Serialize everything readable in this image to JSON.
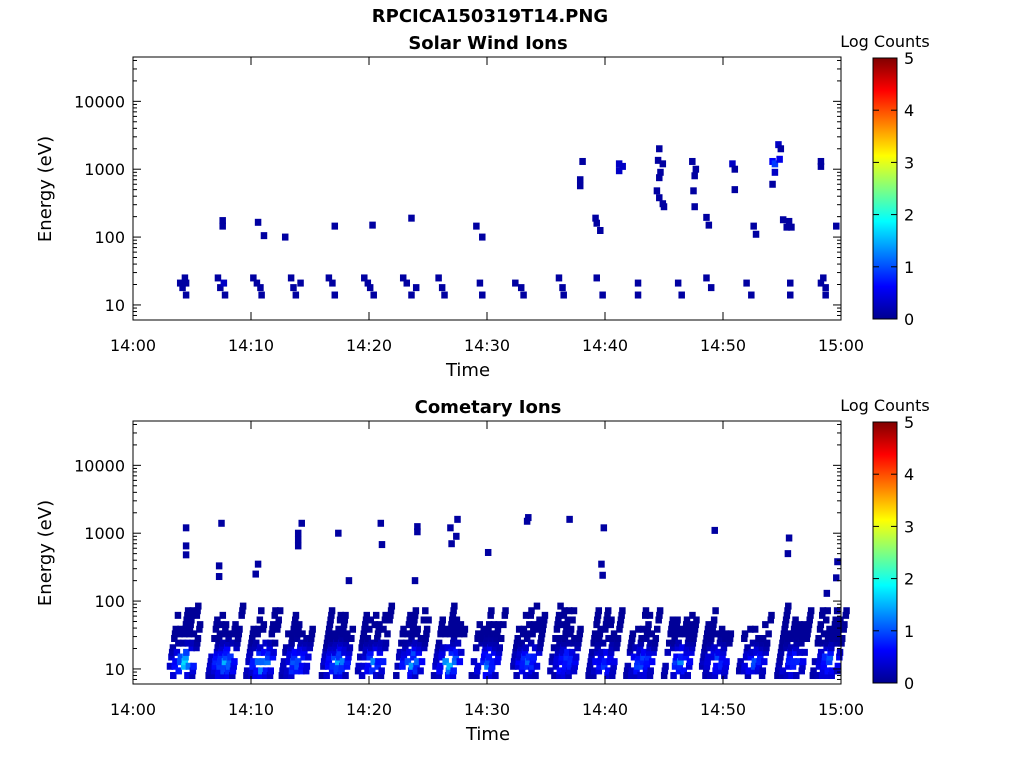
{
  "figure": {
    "title": "RPCICA150319T14.PNG"
  },
  "chart_data": [
    {
      "type": "heatmap",
      "title": "Solar Wind Ions",
      "xlabel": "Time",
      "ylabel": "Energy (eV)",
      "x_ticks": [
        "14:00",
        "14:10",
        "14:20",
        "14:30",
        "14:40",
        "14:50",
        "15:00"
      ],
      "x_range_minutes": [
        0,
        60
      ],
      "y_scale": "log",
      "y_ticks": [
        10,
        100,
        1000,
        10000
      ],
      "y_tick_labels": [
        "10",
        "100",
        "1000",
        "10000"
      ],
      "ylim": [
        6,
        45000
      ],
      "colorbar": {
        "label": "Log Counts",
        "range": [
          0,
          5
        ],
        "ticks": [
          "0",
          "1",
          "2",
          "3",
          "4",
          "5"
        ],
        "colormap": "jet"
      },
      "cells": [
        [
          4.0,
          21,
          0.1
        ],
        [
          4.2,
          18,
          0.1
        ],
        [
          4.4,
          25,
          0.1
        ],
        [
          4.5,
          14,
          0.1
        ],
        [
          4.5,
          21,
          0.1
        ],
        [
          7.2,
          25,
          0.1
        ],
        [
          7.4,
          18,
          0.1
        ],
        [
          7.8,
          14,
          0.1
        ],
        [
          7.7,
          21,
          0.3
        ],
        [
          7.6,
          175,
          0.1
        ],
        [
          7.6,
          145,
          0.1
        ],
        [
          10.2,
          25,
          0.1
        ],
        [
          10.5,
          21,
          0.1
        ],
        [
          10.8,
          18,
          0.1
        ],
        [
          10.9,
          14,
          0.1
        ],
        [
          10.6,
          165,
          0.1
        ],
        [
          11.1,
          105,
          0.1
        ],
        [
          13.4,
          25,
          0.1
        ],
        [
          13.6,
          18,
          0.1
        ],
        [
          13.8,
          14,
          0.1
        ],
        [
          14.2,
          21,
          0.1
        ],
        [
          12.9,
          100,
          0.1
        ],
        [
          16.6,
          25,
          0.1
        ],
        [
          16.9,
          21,
          0.1
        ],
        [
          17.1,
          14,
          0.1
        ],
        [
          17.1,
          145,
          0.1
        ],
        [
          19.6,
          25,
          0.1
        ],
        [
          19.9,
          21,
          0.1
        ],
        [
          20.1,
          18,
          0.1
        ],
        [
          20.4,
          14,
          0.1
        ],
        [
          20.3,
          150,
          0.1
        ],
        [
          22.9,
          25,
          0.1
        ],
        [
          23.2,
          21,
          0.1
        ],
        [
          23.6,
          14,
          0.1
        ],
        [
          24.0,
          18,
          0.1
        ],
        [
          23.6,
          190,
          0.1
        ],
        [
          25.9,
          25,
          0.1
        ],
        [
          26.2,
          18,
          0.1
        ],
        [
          26.4,
          14,
          0.1
        ],
        [
          29.1,
          145,
          0.1
        ],
        [
          29.6,
          100,
          0.1
        ],
        [
          29.4,
          21,
          0.1
        ],
        [
          29.6,
          14,
          0.1
        ],
        [
          32.4,
          21,
          0.1
        ],
        [
          32.9,
          18,
          0.1
        ],
        [
          33.1,
          14,
          0.1
        ],
        [
          36.1,
          25,
          0.1
        ],
        [
          36.4,
          18,
          0.1
        ],
        [
          36.5,
          14,
          0.1
        ],
        [
          38.1,
          1300,
          0.1
        ],
        [
          37.9,
          700,
          0.1
        ],
        [
          37.9,
          570,
          0.1
        ],
        [
          39.2,
          190,
          0.1
        ],
        [
          39.3,
          160,
          0.1
        ],
        [
          39.6,
          125,
          0.1
        ],
        [
          39.3,
          25,
          0.1
        ],
        [
          39.8,
          14,
          0.1
        ],
        [
          41.2,
          1200,
          0.3
        ],
        [
          41.2,
          950,
          0.3
        ],
        [
          41.5,
          1100,
          0.3
        ],
        [
          42.8,
          21,
          0.1
        ],
        [
          42.8,
          14,
          0.1
        ],
        [
          44.6,
          2000,
          0.1
        ],
        [
          44.5,
          1350,
          0.1
        ],
        [
          44.9,
          1200,
          0.1
        ],
        [
          44.7,
          900,
          0.1
        ],
        [
          44.6,
          750,
          0.1
        ],
        [
          44.4,
          480,
          0.1
        ],
        [
          44.6,
          380,
          0.1
        ],
        [
          44.9,
          310,
          0.1
        ],
        [
          45.0,
          280,
          0.1
        ],
        [
          46.2,
          21,
          0.1
        ],
        [
          46.5,
          14,
          0.1
        ],
        [
          47.4,
          1300,
          0.1
        ],
        [
          47.7,
          1000,
          0.1
        ],
        [
          47.6,
          800,
          0.1
        ],
        [
          47.5,
          480,
          0.1
        ],
        [
          47.6,
          280,
          0.1
        ],
        [
          48.6,
          195,
          0.1
        ],
        [
          48.8,
          150,
          0.1
        ],
        [
          48.6,
          25,
          0.1
        ],
        [
          49.0,
          18,
          0.1
        ],
        [
          50.8,
          1200,
          0.3
        ],
        [
          51.0,
          1000,
          0.1
        ],
        [
          51.0,
          500,
          0.1
        ],
        [
          52.0,
          21,
          0.1
        ],
        [
          52.4,
          14,
          0.1
        ],
        [
          52.6,
          145,
          0.1
        ],
        [
          52.8,
          110,
          0.1
        ],
        [
          54.2,
          1300,
          0.6
        ],
        [
          54.4,
          1200,
          0.9
        ],
        [
          54.8,
          1400,
          0.5
        ],
        [
          54.4,
          900,
          0.3
        ],
        [
          54.2,
          600,
          0.1
        ],
        [
          54.7,
          2300,
          0.3
        ],
        [
          54.9,
          2000,
          0.1
        ],
        [
          55.1,
          180,
          0.1
        ],
        [
          55.6,
          170,
          0.1
        ],
        [
          55.4,
          140,
          0.1
        ],
        [
          55.8,
          140,
          0.1
        ],
        [
          55.7,
          21,
          0.1
        ],
        [
          55.7,
          14,
          0.1
        ],
        [
          58.3,
          1300,
          0.1
        ],
        [
          58.3,
          1100,
          0.1
        ],
        [
          58.5,
          25,
          0.1
        ],
        [
          58.3,
          21,
          0.1
        ],
        [
          58.7,
          18,
          0.1
        ],
        [
          58.7,
          14,
          0.1
        ],
        [
          59.6,
          145,
          0.1
        ]
      ]
    },
    {
      "type": "heatmap",
      "title": "Cometary Ions",
      "xlabel": "Time",
      "ylabel": "Energy (eV)",
      "x_ticks": [
        "14:00",
        "14:10",
        "14:20",
        "14:30",
        "14:40",
        "14:50",
        "15:00"
      ],
      "x_range_minutes": [
        0,
        60
      ],
      "y_scale": "log",
      "y_ticks": [
        10,
        100,
        1000,
        10000
      ],
      "y_tick_labels": [
        "10",
        "100",
        "1000",
        "10000"
      ],
      "ylim": [
        6,
        45000
      ],
      "colorbar": {
        "label": "Log Counts",
        "range": [
          0,
          5
        ],
        "ticks": [
          "0",
          "1",
          "2",
          "3",
          "4",
          "5"
        ],
        "colormap": "jet"
      },
      "cells": [
        [
          4.5,
          1200,
          0.1
        ],
        [
          4.5,
          650,
          0.1
        ],
        [
          4.5,
          480,
          0.1
        ],
        [
          7.5,
          1400,
          0.1
        ],
        [
          7.3,
          330,
          0.1
        ],
        [
          7.3,
          230,
          0.1
        ],
        [
          10.6,
          350,
          0.1
        ],
        [
          10.4,
          250,
          0.1
        ],
        [
          14.3,
          1400,
          0.1
        ],
        [
          14.0,
          1000,
          0.1
        ],
        [
          14.0,
          800,
          0.1
        ],
        [
          14.0,
          650,
          0.1
        ],
        [
          17.4,
          1000,
          0.1
        ],
        [
          18.3,
          200,
          0.1
        ],
        [
          21.0,
          1400,
          0.1
        ],
        [
          21.1,
          680,
          0.1
        ],
        [
          24.1,
          1250,
          0.1
        ],
        [
          24.1,
          1050,
          0.1
        ],
        [
          23.9,
          200,
          0.1
        ],
        [
          26.9,
          1200,
          0.1
        ],
        [
          27.5,
          1600,
          0.1
        ],
        [
          27.4,
          900,
          0.1
        ],
        [
          27.0,
          700,
          0.1
        ],
        [
          30.1,
          520,
          0.1
        ],
        [
          33.5,
          1700,
          0.1
        ],
        [
          33.4,
          1500,
          0.1
        ],
        [
          37.0,
          1600,
          0.1
        ],
        [
          39.9,
          1200,
          0.1
        ],
        [
          39.7,
          350,
          0.1
        ],
        [
          39.8,
          240,
          0.1
        ],
        [
          49.3,
          1100,
          0.1
        ],
        [
          55.6,
          850,
          0.1
        ],
        [
          55.5,
          500,
          0.1
        ],
        [
          59.7,
          380,
          0.1
        ],
        [
          59.6,
          220,
          0.1
        ],
        [
          58.8,
          130,
          0.1
        ]
      ],
      "blobs": [
        [
          4.3,
          1.6
        ],
        [
          7.7,
          1.5
        ],
        [
          10.9,
          1.6
        ],
        [
          13.9,
          1.4
        ],
        [
          17.3,
          1.5
        ],
        [
          20.3,
          1.4
        ],
        [
          23.6,
          1.4
        ],
        [
          26.8,
          1.6
        ],
        [
          30.0,
          1.3
        ],
        [
          33.4,
          1.2
        ],
        [
          36.6,
          1.1
        ],
        [
          39.9,
          1.1
        ],
        [
          43.1,
          1.2
        ],
        [
          46.3,
          1.3
        ],
        [
          49.4,
          1.1
        ],
        [
          52.6,
          1.0
        ],
        [
          55.9,
          1.0
        ],
        [
          58.9,
          1.1
        ]
      ]
    }
  ]
}
